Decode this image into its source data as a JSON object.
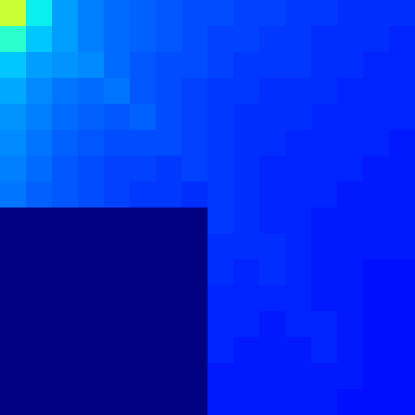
{
  "chart_data": {
    "type": "heatmap",
    "zlim": [
      0,
      1
    ],
    "tick_labels": false,
    "cells": [
      [
        0.58,
        0.36,
        0.28,
        0.25,
        0.23,
        0.22,
        0.21,
        0.2,
        0.2,
        0.19,
        0.19,
        0.18,
        0.18,
        0.17,
        0.17,
        0.17
      ],
      [
        0.4,
        0.32,
        0.28,
        0.25,
        0.23,
        0.22,
        0.21,
        0.2,
        0.19,
        0.19,
        0.18,
        0.18,
        0.17,
        0.17,
        0.17,
        0.16
      ],
      [
        0.32,
        0.28,
        0.27,
        0.26,
        0.23,
        0.21,
        0.2,
        0.2,
        0.19,
        0.18,
        0.18,
        0.18,
        0.17,
        0.17,
        0.16,
        0.16
      ],
      [
        0.29,
        0.26,
        0.24,
        0.23,
        0.24,
        0.21,
        0.2,
        0.19,
        0.18,
        0.18,
        0.17,
        0.17,
        0.17,
        0.16,
        0.16,
        0.16
      ],
      [
        0.27,
        0.25,
        0.23,
        0.22,
        0.21,
        0.22,
        0.2,
        0.19,
        0.18,
        0.17,
        0.17,
        0.17,
        0.16,
        0.16,
        0.16,
        0.16
      ],
      [
        0.26,
        0.24,
        0.22,
        0.21,
        0.2,
        0.2,
        0.2,
        0.19,
        0.18,
        0.17,
        0.17,
        0.16,
        0.16,
        0.16,
        0.16,
        0.15
      ],
      [
        0.25,
        0.23,
        0.21,
        0.2,
        0.19,
        0.19,
        0.18,
        0.19,
        0.18,
        0.17,
        0.16,
        0.16,
        0.16,
        0.16,
        0.15,
        0.15
      ],
      [
        0.24,
        0.22,
        0.21,
        0.2,
        0.19,
        0.18,
        0.18,
        0.17,
        0.18,
        0.17,
        0.16,
        0.16,
        0.16,
        0.15,
        0.15,
        0.15
      ],
      [
        0,
        0,
        0,
        0,
        0,
        0,
        0,
        0,
        0.18,
        0.17,
        0.16,
        0.16,
        0.15,
        0.15,
        0.15,
        0.15
      ],
      [
        0,
        0,
        0,
        0,
        0,
        0,
        0,
        0,
        0.17,
        0.17,
        0.17,
        0.16,
        0.15,
        0.15,
        0.15,
        0.15
      ],
      [
        0,
        0,
        0,
        0,
        0,
        0,
        0,
        0,
        0.17,
        0.16,
        0.17,
        0.16,
        0.15,
        0.15,
        0.14,
        0.14
      ],
      [
        0,
        0,
        0,
        0,
        0,
        0,
        0,
        0,
        0.16,
        0.16,
        0.16,
        0.16,
        0.15,
        0.15,
        0.14,
        0.14
      ],
      [
        0,
        0,
        0,
        0,
        0,
        0,
        0,
        0,
        0.16,
        0.16,
        0.15,
        0.16,
        0.16,
        0.15,
        0.14,
        0.14
      ],
      [
        0,
        0,
        0,
        0,
        0,
        0,
        0,
        0,
        0.16,
        0.15,
        0.15,
        0.15,
        0.16,
        0.15,
        0.14,
        0.14
      ],
      [
        0,
        0,
        0,
        0,
        0,
        0,
        0,
        0,
        0.15,
        0.15,
        0.15,
        0.15,
        0.15,
        0.15,
        0.14,
        0.14
      ],
      [
        0,
        0,
        0,
        0,
        0,
        0,
        0,
        0,
        0.15,
        0.15,
        0.15,
        0.15,
        0.15,
        0.14,
        0.14,
        0.14
      ]
    ]
  }
}
